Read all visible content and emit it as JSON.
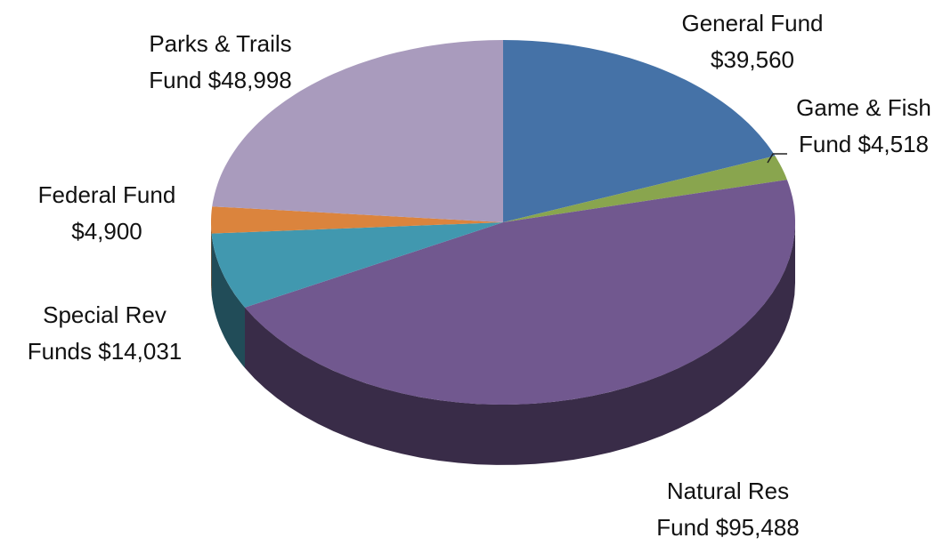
{
  "chart_data": {
    "type": "pie",
    "categories": [
      "General Fund",
      "Game & Fish Fund",
      "Natural Res Fund",
      "Special Rev Funds",
      "Federal Fund",
      "Parks & Trails Fund"
    ],
    "values": [
      39560,
      4518,
      95488,
      14031,
      4900,
      48998
    ],
    "value_labels": [
      "$39,560",
      "$4,518",
      "$95,488",
      "$14,031",
      "$4,900",
      "$48,998"
    ],
    "colors": [
      "#4572a7",
      "#89a54e",
      "#71588f",
      "#4198af",
      "#db843d",
      "#a99bbd"
    ]
  }
}
